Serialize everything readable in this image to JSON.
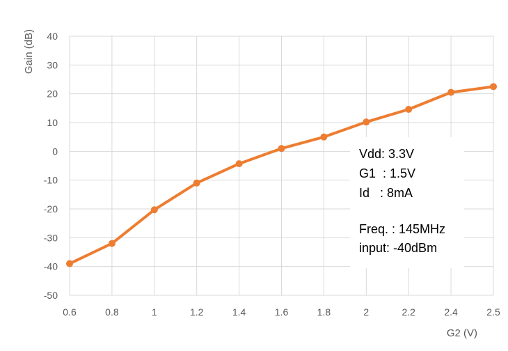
{
  "chart_data": {
    "type": "line",
    "title": "",
    "xlabel": "G2 (V)",
    "ylabel": "Gain (dB)",
    "x": [
      0.6,
      0.8,
      1,
      1.2,
      1.4,
      1.6,
      1.8,
      2,
      2.2,
      2.4,
      2.5
    ],
    "x_tick_labels": [
      "0.6",
      "0.8",
      "1",
      "1.2",
      "1.4",
      "1.6",
      "1.8",
      "2",
      "2.2",
      "2.4",
      "2.5"
    ],
    "y_ticks": [
      40,
      30,
      20,
      10,
      0,
      -10,
      -20,
      -30,
      -40,
      -50
    ],
    "ylim": [
      -50,
      40
    ],
    "grid": "vertical and horizontal",
    "series": [
      {
        "values": [
          -39,
          -32,
          -20.3,
          -11,
          -4.3,
          1,
          5,
          10.2,
          14.6,
          20.5,
          22.5
        ],
        "color": "#ED7D31",
        "marker": "circle"
      }
    ],
    "annotations": [
      "Vdd: 3.3V",
      "G1  : 1.5V",
      "Id   : 8mA",
      "Freq. : 145MHz",
      "input: -40dBm"
    ],
    "colors": {
      "grid": "#D9D9D9",
      "axis_text": "#595959",
      "series": "#ED7D31"
    }
  }
}
